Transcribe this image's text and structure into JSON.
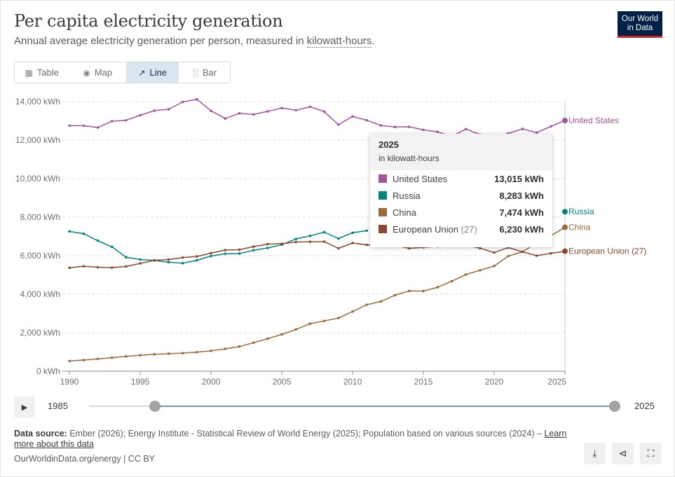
{
  "header": {
    "title": "Per capita electricity generation",
    "subtitle_before": "Annual average electricity generation per person, measured in ",
    "subtitle_term": "kilowatt-hours",
    "subtitle_after": ".",
    "logo_line1": "Our World",
    "logo_line2": "in Data"
  },
  "tabs": [
    {
      "label": "Table",
      "icon": "table-icon",
      "active": false
    },
    {
      "label": "Map",
      "icon": "globe-icon",
      "active": false
    },
    {
      "label": "Line",
      "icon": "line-chart-icon",
      "active": true
    },
    {
      "label": "Bar",
      "icon": "bar-chart-icon",
      "active": false
    }
  ],
  "chart_data": {
    "type": "line",
    "ylabel": "",
    "xlabel": "",
    "xlim": [
      1989.5,
      2025
    ],
    "ylim": [
      0,
      14000
    ],
    "y_ticks": [
      0,
      2000,
      4000,
      6000,
      8000,
      10000,
      12000,
      14000
    ],
    "y_tick_labels": [
      "0 kWh",
      "2,000 kWh",
      "4,000 kWh",
      "6,000 kWh",
      "8,000 kWh",
      "10,000 kWh",
      "12,000 kWh",
      "14,000 kWh"
    ],
    "x_ticks": [
      1990,
      1995,
      2000,
      2005,
      2010,
      2015,
      2020,
      2025
    ],
    "x_tick_labels": [
      "1990",
      "1995",
      "2000",
      "2005",
      "2010",
      "2015",
      "2020",
      "2025"
    ],
    "grid": "horizontal dashed",
    "legend": "line-end labels",
    "series": [
      {
        "name": "United States",
        "color": "#a2559c",
        "x": [
          1990,
          1991,
          1992,
          1993,
          1994,
          1995,
          1996,
          1997,
          1998,
          1999,
          2000,
          2001,
          2002,
          2003,
          2004,
          2005,
          2006,
          2007,
          2008,
          2009,
          2010,
          2011,
          2012,
          2013,
          2014,
          2015,
          2016,
          2017,
          2018,
          2019,
          2020,
          2021,
          2022,
          2023,
          2024,
          2025
        ],
        "y": [
          12750,
          12750,
          12650,
          12980,
          13030,
          13290,
          13530,
          13600,
          13980,
          14120,
          13520,
          13120,
          13390,
          13330,
          13490,
          13660,
          13550,
          13730,
          13480,
          12800,
          13230,
          13030,
          12760,
          12680,
          12690,
          12530,
          12430,
          12190,
          12570,
          12290,
          12150,
          12350,
          12580,
          12390,
          12710,
          13015
        ]
      },
      {
        "name": "Russia",
        "color": "#00847e",
        "x": [
          1990,
          1991,
          1992,
          1993,
          1994,
          1995,
          1996,
          1997,
          1998,
          1999,
          2000,
          2001,
          2002,
          2003,
          2004,
          2005,
          2006,
          2007,
          2008,
          2009,
          2010,
          2011
        ],
        "y": [
          7260,
          7140,
          6780,
          6460,
          5920,
          5800,
          5750,
          5660,
          5610,
          5760,
          5980,
          6100,
          6110,
          6280,
          6400,
          6570,
          6870,
          7030,
          7220,
          6890,
          7190,
          7300
        ]
      },
      {
        "name": "China",
        "color": "#9a6a3a",
        "x": [
          1990,
          1991,
          1992,
          1993,
          1994,
          1995,
          1996,
          1997,
          1998,
          1999,
          2000,
          2001,
          2002,
          2003,
          2004,
          2005,
          2006,
          2007,
          2008,
          2009,
          2010,
          2011,
          2012,
          2013,
          2014,
          2015,
          2016,
          2017,
          2018,
          2019,
          2020,
          2021,
          2022,
          2023,
          2024,
          2025
        ],
        "y": [
          530,
          580,
          640,
          700,
          770,
          830,
          880,
          910,
          940,
          990,
          1060,
          1160,
          1280,
          1480,
          1690,
          1910,
          2170,
          2470,
          2610,
          2760,
          3100,
          3450,
          3620,
          3950,
          4170,
          4160,
          4360,
          4670,
          5020,
          5240,
          5460,
          5980,
          6200,
          6660,
          7030,
          7474
        ]
      },
      {
        "name": "European Union (27)",
        "color": "#8e4a2f",
        "x": [
          1990,
          1991,
          1992,
          1993,
          1994,
          1995,
          1996,
          1997,
          1998,
          1999,
          2000,
          2001,
          2002,
          2003,
          2004,
          2005,
          2006,
          2007,
          2008,
          2009,
          2010,
          2011,
          2012,
          2013,
          2014,
          2015,
          2016,
          2017,
          2018,
          2019,
          2020,
          2021,
          2022,
          2023,
          2024,
          2025
        ],
        "y": [
          5370,
          5450,
          5400,
          5380,
          5440,
          5600,
          5760,
          5800,
          5900,
          5960,
          6130,
          6290,
          6310,
          6470,
          6600,
          6620,
          6710,
          6720,
          6730,
          6380,
          6660,
          6560,
          6560,
          6520,
          6380,
          6430,
          6480,
          6540,
          6530,
          6390,
          6160,
          6420,
          6200,
          6000,
          6120,
          6230
        ]
      }
    ],
    "line_labels": [
      "United States",
      "Russia",
      "China",
      "European Union (27)"
    ]
  },
  "tooltip": {
    "year": "2025",
    "unit": "in kilowatt-hours",
    "rows": [
      {
        "name": "United States",
        "paren": "",
        "value": "13,015 kWh",
        "color": "#a2559c"
      },
      {
        "name": "Russia",
        "paren": "",
        "value": "8,283 kWh",
        "color": "#00847e"
      },
      {
        "name": "China",
        "paren": "",
        "value": "7,474 kWh",
        "color": "#9a6a3a"
      },
      {
        "name": "European Union",
        "paren": "(27)",
        "value": "6,230 kWh",
        "color": "#8e4a2f"
      }
    ]
  },
  "timeline": {
    "start_label": "1985",
    "end_label": "2025",
    "min": 1985,
    "max": 2025,
    "range_start": 1990,
    "range_end": 2025
  },
  "footer": {
    "source_label": "Data source:",
    "source_text": " Ember (2026); Energy Institute - Statistical Review of World Energy (2025); Population based on various sources (2024) – ",
    "learn_more": "Learn more about this data",
    "credit": "OurWorldinData.org/energy | CC BY"
  },
  "actions": [
    {
      "icon": "download-icon"
    },
    {
      "icon": "share-icon"
    },
    {
      "icon": "fullscreen-icon"
    }
  ]
}
